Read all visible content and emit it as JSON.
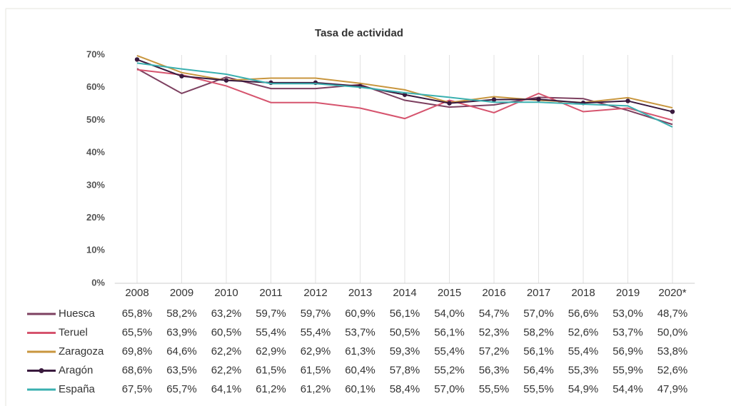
{
  "chart_data": {
    "type": "line",
    "title": "Tasa de actividad",
    "categories": [
      "2008",
      "2009",
      "2010",
      "2011",
      "2012",
      "2013",
      "2014",
      "2015",
      "2016",
      "2017",
      "2018",
      "2019",
      "2020*"
    ],
    "ylim": [
      0,
      70
    ],
    "yticks": [
      {
        "value": 0,
        "label": "0%"
      },
      {
        "value": 10,
        "label": "10%"
      },
      {
        "value": 20,
        "label": "20%"
      },
      {
        "value": 30,
        "label": "30%"
      },
      {
        "value": 40,
        "label": "40%"
      },
      {
        "value": 50,
        "label": "50%"
      },
      {
        "value": 60,
        "label": "60%"
      },
      {
        "value": 70,
        "label": "70%"
      }
    ],
    "series": [
      {
        "name": "Huesca",
        "color": "#7d4060",
        "markers": false,
        "values": [
          65.8,
          58.2,
          63.2,
          59.7,
          59.7,
          60.9,
          56.1,
          54.0,
          54.7,
          57.0,
          56.6,
          53.0,
          48.7
        ],
        "value_labels": [
          "65,8%",
          "58,2%",
          "63,2%",
          "59,7%",
          "59,7%",
          "60,9%",
          "56,1%",
          "54,0%",
          "54,7%",
          "57,0%",
          "56,6%",
          "53,0%",
          "48,7%"
        ]
      },
      {
        "name": "Teruel",
        "color": "#d6546e",
        "markers": false,
        "values": [
          65.5,
          63.9,
          60.5,
          55.4,
          55.4,
          53.7,
          50.5,
          56.1,
          52.3,
          58.2,
          52.6,
          53.7,
          50.0
        ],
        "value_labels": [
          "65,5%",
          "63,9%",
          "60,5%",
          "55,4%",
          "55,4%",
          "53,7%",
          "50,5%",
          "56,1%",
          "52,3%",
          "58,2%",
          "52,6%",
          "53,7%",
          "50,0%"
        ]
      },
      {
        "name": "Zaragoza",
        "color": "#c8963e",
        "markers": false,
        "values": [
          69.8,
          64.6,
          62.2,
          62.9,
          62.9,
          61.3,
          59.3,
          55.4,
          57.2,
          56.1,
          55.4,
          56.9,
          53.8
        ],
        "value_labels": [
          "69,8%",
          "64,6%",
          "62,2%",
          "62,9%",
          "62,9%",
          "61,3%",
          "59,3%",
          "55,4%",
          "57,2%",
          "56,1%",
          "55,4%",
          "56,9%",
          "53,8%"
        ]
      },
      {
        "name": "Aragón",
        "color": "#3a1a3e",
        "markers": true,
        "values": [
          68.6,
          63.5,
          62.2,
          61.5,
          61.5,
          60.4,
          57.8,
          55.2,
          56.3,
          56.4,
          55.3,
          55.9,
          52.6
        ],
        "value_labels": [
          "68,6%",
          "63,5%",
          "62,2%",
          "61,5%",
          "61,5%",
          "60,4%",
          "57,8%",
          "55,2%",
          "56,3%",
          "56,4%",
          "55,3%",
          "55,9%",
          "52,6%"
        ]
      },
      {
        "name": "España",
        "color": "#3ab0b0",
        "markers": false,
        "values": [
          67.5,
          65.7,
          64.1,
          61.2,
          61.2,
          60.1,
          58.4,
          57.0,
          55.5,
          55.5,
          54.9,
          54.4,
          47.9
        ],
        "value_labels": [
          "67,5%",
          "65,7%",
          "64,1%",
          "61,2%",
          "61,2%",
          "60,1%",
          "58,4%",
          "57,0%",
          "55,5%",
          "55,5%",
          "54,9%",
          "54,4%",
          "47,9%"
        ]
      }
    ]
  }
}
